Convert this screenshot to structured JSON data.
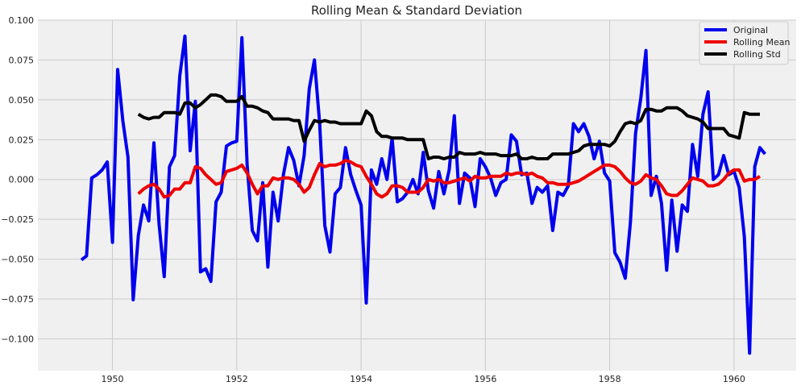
{
  "chart_data": {
    "type": "line",
    "title": "Rolling Mean & Standard Deviation",
    "xlabel": "",
    "ylabel": "",
    "xlim": [
      1948.8,
      1961.0
    ],
    "ylim": [
      -0.12,
      0.1
    ],
    "x_ticks": [
      1950,
      1952,
      1954,
      1956,
      1958,
      1960
    ],
    "x_tick_labels": [
      "1950",
      "1952",
      "1954",
      "1956",
      "1958",
      "1960"
    ],
    "y_ticks": [
      -0.1,
      -0.075,
      -0.05,
      -0.025,
      0.0,
      0.025,
      0.05,
      0.075,
      0.1
    ],
    "y_tick_labels": [
      "−0.100",
      "−0.075",
      "−0.050",
      "−0.025",
      "0.000",
      "0.025",
      "0.050",
      "0.075",
      "0.100"
    ],
    "grid": true,
    "legend_position": "top-right",
    "start_year": 1949.5,
    "step": 0.08333333,
    "series": [
      {
        "name": "Original",
        "color": "#0000ee",
        "start_index": 0,
        "values": [
          -0.0505,
          -0.048,
          0.001,
          0.003,
          0.006,
          0.011,
          -0.0395,
          0.069,
          0.037,
          0.014,
          -0.0755,
          -0.035,
          -0.016,
          -0.026,
          0.023,
          -0.028,
          -0.061,
          0.008,
          0.015,
          0.065,
          0.09,
          0.018,
          0.049,
          -0.058,
          -0.056,
          -0.064,
          -0.014,
          -0.008,
          0.021,
          0.023,
          0.024,
          0.089,
          0.009,
          -0.032,
          -0.0385,
          -0.002,
          -0.055,
          -0.008,
          -0.026,
          0.003,
          0.02,
          0.012,
          -0.004,
          0.015,
          0.057,
          0.075,
          0.035,
          -0.029,
          -0.0455,
          -0.009,
          -0.005,
          0.02,
          0.003,
          -0.007,
          -0.016,
          -0.0775,
          0.006,
          -0.003,
          0.013,
          0.0,
          0.026,
          -0.014,
          -0.012,
          -0.008,
          0.0,
          -0.009,
          0.017,
          -0.007,
          -0.018,
          0.005,
          -0.009,
          0.006,
          0.04,
          -0.015,
          0.004,
          0.001,
          -0.017,
          0.013,
          0.008,
          0.001,
          -0.01,
          -0.002,
          0.0,
          0.028,
          0.024,
          0.003,
          0.004,
          -0.015,
          -0.005,
          -0.008,
          -0.004,
          -0.032,
          -0.008,
          -0.01,
          -0.004,
          0.035,
          0.03,
          0.035,
          0.027,
          0.013,
          0.024,
          0.004,
          -0.001,
          -0.046,
          -0.052,
          -0.062,
          -0.027,
          0.029,
          0.051,
          0.081,
          -0.01,
          0.002,
          -0.015,
          -0.057,
          -0.013,
          -0.045,
          -0.016,
          -0.02,
          0.022,
          0.002,
          0.041,
          0.055,
          0.0,
          0.003,
          0.015,
          0.003,
          0.005,
          -0.005,
          -0.036,
          -0.109,
          0.008,
          0.02,
          0.016
        ]
      },
      {
        "name": "Rolling Mean",
        "color": "#ee0000",
        "start_index": 11,
        "values": [
          -0.009,
          -0.006,
          -0.004,
          -0.003,
          -0.006,
          -0.011,
          -0.01,
          -0.006,
          -0.006,
          -0.002,
          -0.002,
          0.008,
          0.007,
          0.003,
          0.0,
          -0.003,
          -0.002,
          0.005,
          0.006,
          0.007,
          0.009,
          0.004,
          -0.003,
          -0.009,
          -0.004,
          -0.004,
          0.001,
          0.0,
          0.001,
          0.001,
          0.0,
          -0.003,
          -0.008,
          -0.005,
          0.003,
          0.01,
          0.008,
          0.009,
          0.009,
          0.01,
          0.012,
          0.011,
          0.009,
          0.008,
          0.002,
          -0.003,
          -0.009,
          -0.011,
          -0.009,
          -0.004,
          -0.004,
          -0.005,
          -0.008,
          -0.008,
          -0.008,
          -0.005,
          0.0,
          -0.001,
          0.0,
          -0.002,
          -0.002,
          -0.001,
          0.0,
          0.001,
          -0.001,
          0.002,
          0.001,
          0.001,
          0.002,
          0.002,
          0.002,
          0.004,
          0.003,
          0.004,
          0.004,
          0.003,
          0.004,
          0.002,
          0.001,
          -0.002,
          -0.002,
          -0.003,
          -0.003,
          -0.003,
          -0.002,
          -0.001,
          0.001,
          0.003,
          0.005,
          0.007,
          0.009,
          0.009,
          0.008,
          0.005,
          0.001,
          -0.002,
          -0.003,
          -0.001,
          0.003,
          0.001,
          0.0,
          -0.004,
          -0.009,
          -0.01,
          -0.01,
          -0.007,
          -0.003,
          0.001,
          0.0,
          -0.001,
          -0.004,
          -0.004,
          -0.003,
          0.0,
          0.004,
          0.006,
          0.006,
          -0.001,
          0.0,
          0.0,
          0.002
        ]
      },
      {
        "name": "Rolling Std",
        "color": "#000000",
        "start_index": 11,
        "values": [
          0.041,
          0.039,
          0.038,
          0.039,
          0.039,
          0.042,
          0.042,
          0.042,
          0.041,
          0.048,
          0.048,
          0.045,
          0.047,
          0.05,
          0.053,
          0.053,
          0.052,
          0.049,
          0.049,
          0.049,
          0.052,
          0.046,
          0.046,
          0.045,
          0.043,
          0.042,
          0.038,
          0.038,
          0.038,
          0.038,
          0.037,
          0.037,
          0.024,
          0.031,
          0.037,
          0.036,
          0.037,
          0.036,
          0.036,
          0.035,
          0.035,
          0.035,
          0.035,
          0.035,
          0.043,
          0.04,
          0.03,
          0.027,
          0.027,
          0.026,
          0.026,
          0.026,
          0.025,
          0.025,
          0.025,
          0.025,
          0.013,
          0.014,
          0.014,
          0.013,
          0.014,
          0.014,
          0.017,
          0.016,
          0.016,
          0.016,
          0.017,
          0.016,
          0.016,
          0.016,
          0.015,
          0.015,
          0.015,
          0.016,
          0.013,
          0.013,
          0.014,
          0.013,
          0.013,
          0.013,
          0.016,
          0.016,
          0.016,
          0.016,
          0.017,
          0.018,
          0.021,
          0.022,
          0.022,
          0.022,
          0.022,
          0.021,
          0.024,
          0.03,
          0.035,
          0.036,
          0.035,
          0.037,
          0.044,
          0.044,
          0.043,
          0.043,
          0.045,
          0.045,
          0.045,
          0.043,
          0.04,
          0.039,
          0.038,
          0.036,
          0.032,
          0.032,
          0.032,
          0.032,
          0.028,
          0.027,
          0.026,
          0.042,
          0.041,
          0.041,
          0.041
        ]
      }
    ]
  }
}
